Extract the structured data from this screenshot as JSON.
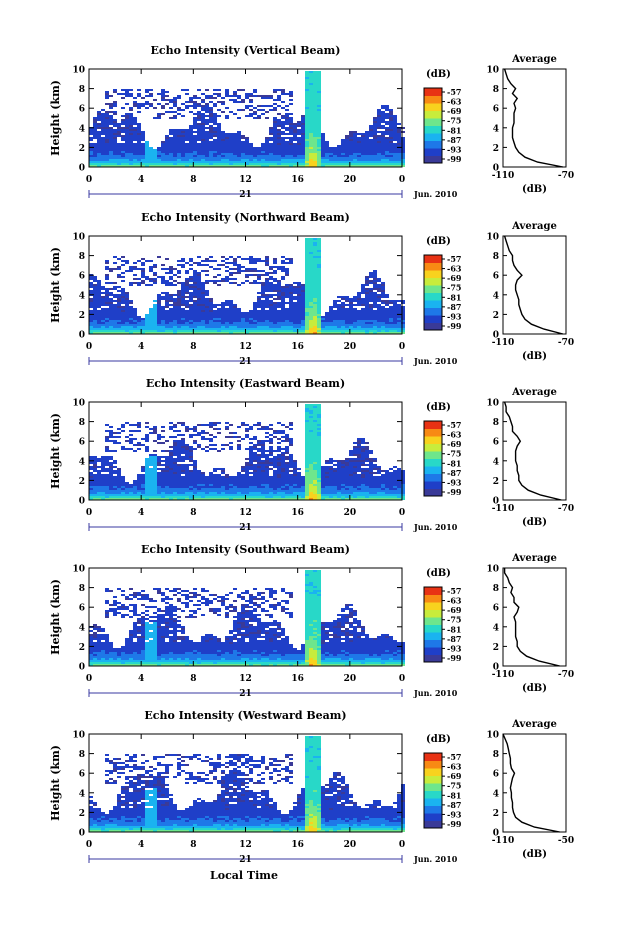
{
  "date_label": "Jun. 2010",
  "day_label": "21",
  "xlabel": "Local Time",
  "ylabel": "Height (km)",
  "cbar_unit": "(dB)",
  "avg_title": "Average",
  "avg_xlabel": "(dB)",
  "panels": [
    {
      "title": "Echo Intensity (Vertical Beam)"
    },
    {
      "title": "Echo Intensity (Northward Beam)"
    },
    {
      "title": "Echo Intensity (Eastward Beam)"
    },
    {
      "title": "Echo Intensity (Southward Beam)"
    },
    {
      "title": "Echo Intensity (Westward Beam)"
    }
  ],
  "colors": {
    "scale": [
      "#3a3a98",
      "#1f3fc8",
      "#1e78e8",
      "#1ab3f0",
      "#28d8c8",
      "#6ee68c",
      "#c8ec3c",
      "#f8d21e",
      "#f88a14",
      "#e83214"
    ]
  },
  "chart_data": [
    {
      "type": "heatmap",
      "title": "Echo Intensity (Vertical Beam)",
      "xlabel": "",
      "ylabel": "Height (km)",
      "x_ticks": [
        "0",
        "4",
        "8",
        "12",
        "16",
        "20",
        "0"
      ],
      "y_ticks": [
        "0",
        "2",
        "4",
        "6",
        "8",
        "10"
      ],
      "xlim": [
        0,
        24
      ],
      "ylim": [
        0,
        10
      ],
      "colorbar": {
        "label": "(dB)",
        "ticks": [
          "-57",
          "-63",
          "-69",
          "-75",
          "-81",
          "-87",
          "-93",
          "-99"
        ]
      },
      "average": {
        "title": "Average",
        "xlabel": "(dB)",
        "x_ticks": [
          "-110",
          "-70"
        ],
        "xlim": [
          -110,
          -70
        ],
        "height": [
          0,
          0.5,
          1,
          1.5,
          2,
          2.5,
          3,
          3.5,
          4,
          4.5,
          5,
          5.5,
          6,
          6.5,
          7,
          7.5,
          8,
          8.5,
          9,
          9.5,
          10
        ],
        "db": [
          -72,
          -88,
          -96,
          -100,
          -102,
          -103,
          -104,
          -104,
          -104,
          -103,
          -103,
          -103,
          -102,
          -103,
          -101,
          -104,
          -102,
          -105,
          -107,
          -108,
          -109
        ]
      }
    },
    {
      "type": "heatmap",
      "title": "Echo Intensity (Northward Beam)",
      "xlabel": "",
      "ylabel": "Height (km)",
      "x_ticks": [
        "0",
        "4",
        "8",
        "12",
        "16",
        "20",
        "0"
      ],
      "y_ticks": [
        "0",
        "2",
        "4",
        "6",
        "8",
        "10"
      ],
      "xlim": [
        0,
        24
      ],
      "ylim": [
        0,
        10
      ],
      "colorbar": {
        "label": "(dB)",
        "ticks": [
          "-57",
          "-63",
          "-69",
          "-75",
          "-81",
          "-87",
          "-93",
          "-99"
        ]
      },
      "average": {
        "title": "Average",
        "xlabel": "(dB)",
        "x_ticks": [
          "-110",
          "-70"
        ],
        "xlim": [
          -110,
          -70
        ],
        "height": [
          0,
          0.5,
          1,
          1.5,
          2,
          2.5,
          3,
          3.5,
          4,
          4.5,
          5,
          5.5,
          6,
          6.5,
          7,
          7.5,
          8,
          8.5,
          9,
          9.5,
          10
        ],
        "db": [
          -72,
          -84,
          -92,
          -96,
          -98,
          -99,
          -100,
          -100,
          -101,
          -102,
          -102,
          -101,
          -98,
          -101,
          -103,
          -104,
          -104,
          -106,
          -107,
          -108,
          -109
        ]
      }
    },
    {
      "type": "heatmap",
      "title": "Echo Intensity (Eastward Beam)",
      "xlabel": "",
      "ylabel": "Height (km)",
      "x_ticks": [
        "0",
        "4",
        "8",
        "12",
        "16",
        "20",
        "0"
      ],
      "y_ticks": [
        "0",
        "2",
        "4",
        "6",
        "8",
        "10"
      ],
      "xlim": [
        0,
        24
      ],
      "ylim": [
        0,
        10
      ],
      "colorbar": {
        "label": "(dB)",
        "ticks": [
          "-57",
          "-63",
          "-69",
          "-75",
          "-81",
          "-87",
          "-93",
          "-99"
        ]
      },
      "average": {
        "title": "Average",
        "xlabel": "(dB)",
        "x_ticks": [
          "-110",
          "-70"
        ],
        "xlim": [
          -110,
          -70
        ],
        "height": [
          0,
          0.5,
          1,
          1.5,
          2,
          2.5,
          3,
          3.5,
          4,
          4.5,
          5,
          5.5,
          6,
          6.5,
          7,
          7.5,
          8,
          8.5,
          9,
          9.5,
          10
        ],
        "db": [
          -73,
          -86,
          -94,
          -98,
          -100,
          -100,
          -101,
          -101,
          -102,
          -102,
          -102,
          -101,
          -99,
          -101,
          -104,
          -104,
          -105,
          -106,
          -108,
          -108,
          -109
        ]
      }
    },
    {
      "type": "heatmap",
      "title": "Echo Intensity (Southward Beam)",
      "xlabel": "",
      "ylabel": "Height (km)",
      "x_ticks": [
        "0",
        "4",
        "8",
        "12",
        "16",
        "20",
        "0"
      ],
      "y_ticks": [
        "0",
        "2",
        "4",
        "6",
        "8",
        "10"
      ],
      "xlim": [
        0,
        24
      ],
      "ylim": [
        0,
        10
      ],
      "colorbar": {
        "label": "(dB)",
        "ticks": [
          "-57",
          "-63",
          "-69",
          "-75",
          "-81",
          "-87",
          "-93",
          "-99"
        ]
      },
      "average": {
        "title": "Average",
        "xlabel": "(dB)",
        "x_ticks": [
          "-110",
          "-70"
        ],
        "xlim": [
          -110,
          -70
        ],
        "height": [
          0,
          0.5,
          1,
          1.5,
          2,
          2.5,
          3,
          3.5,
          4,
          4.5,
          5,
          5.5,
          6,
          6.5,
          7,
          7.5,
          8,
          8.5,
          9,
          9.5,
          10
        ],
        "db": [
          -74,
          -87,
          -95,
          -99,
          -101,
          -101,
          -102,
          -102,
          -102,
          -102,
          -103,
          -101,
          -100,
          -103,
          -103,
          -105,
          -104,
          -106,
          -107,
          -109,
          -109
        ]
      }
    },
    {
      "type": "heatmap",
      "title": "Echo Intensity (Westward Beam)",
      "xlabel": "Local Time",
      "ylabel": "Height (km)",
      "x_ticks": [
        "0",
        "4",
        "8",
        "12",
        "16",
        "20",
        "0"
      ],
      "y_ticks": [
        "0",
        "2",
        "4",
        "6",
        "8",
        "10"
      ],
      "xlim": [
        0,
        24
      ],
      "ylim": [
        0,
        10
      ],
      "colorbar": {
        "label": "(dB)",
        "ticks": [
          "-57",
          "-63",
          "-69",
          "-75",
          "-81",
          "-87",
          "-93",
          "-99"
        ]
      },
      "average": {
        "title": "Average",
        "xlabel": "(dB)",
        "x_ticks": [
          "-110",
          "-50"
        ],
        "xlim": [
          -110,
          -50
        ],
        "height": [
          0,
          0.5,
          1,
          1.5,
          2,
          2.5,
          3,
          3.5,
          4,
          4.5,
          5,
          5.5,
          6,
          6.5,
          7,
          7.5,
          8,
          8.5,
          9,
          9.5,
          10
        ],
        "db": [
          -56,
          -80,
          -92,
          -98,
          -100,
          -101,
          -101,
          -102,
          -102,
          -103,
          -102,
          -101,
          -99,
          -102,
          -103,
          -103,
          -104,
          -105,
          -106,
          -108,
          -110
        ]
      }
    }
  ]
}
